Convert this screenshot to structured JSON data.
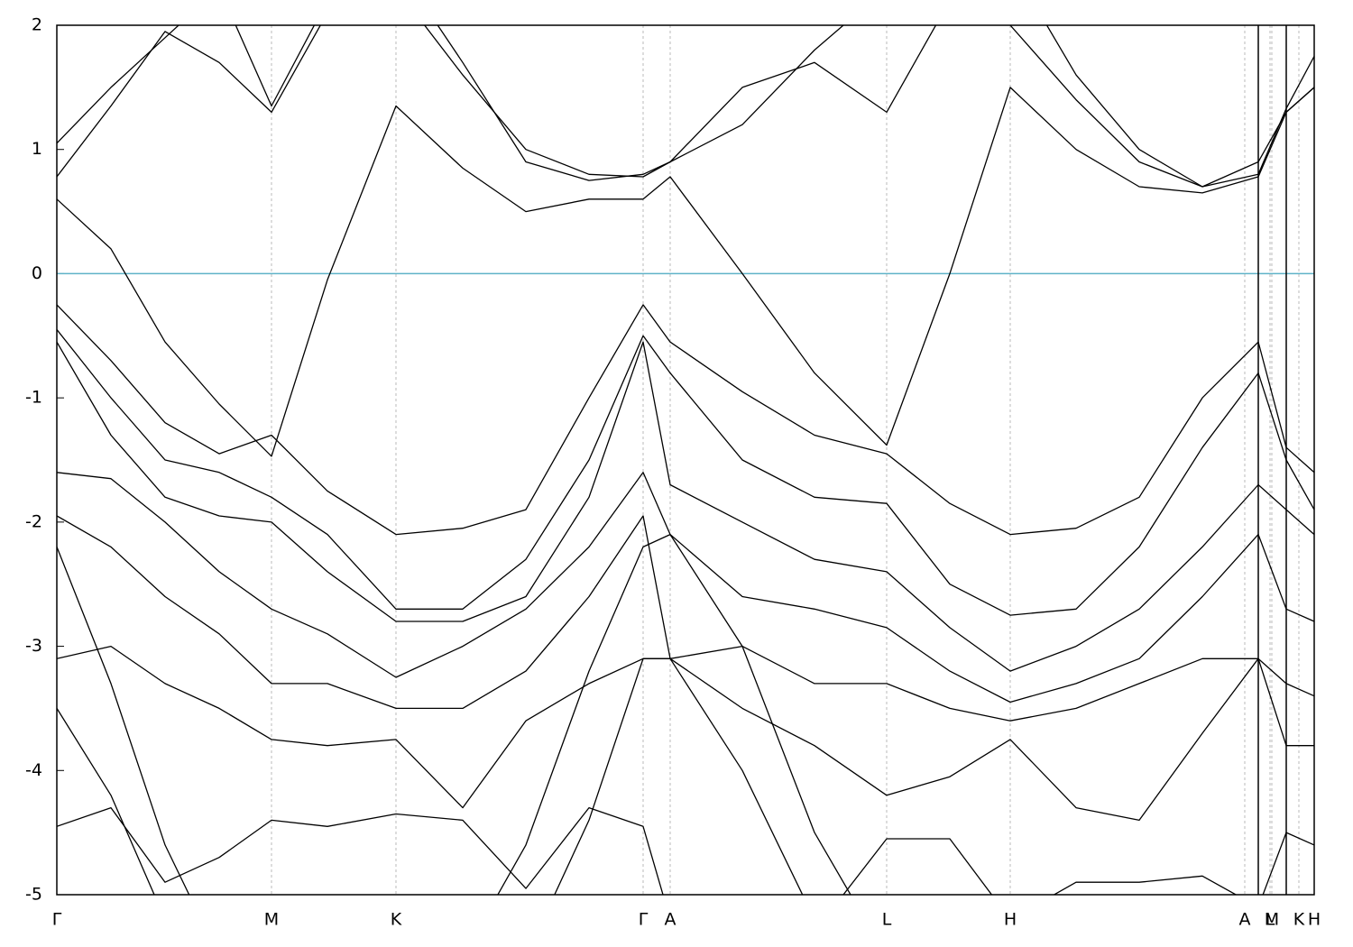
{
  "chart_data": {
    "type": "line",
    "x": [
      0,
      60,
      120,
      180,
      238,
      300,
      376,
      450,
      520,
      590,
      650,
      680,
      760,
      840,
      920,
      990,
      1057,
      1130,
      1200,
      1270,
      1332,
      1363,
      1394
    ],
    "xlim": [
      0,
      1394
    ],
    "xticks": [
      {
        "value": 0,
        "label": "Γ"
      },
      {
        "value": 238,
        "label": "M"
      },
      {
        "value": 376,
        "label": "K"
      },
      {
        "value": 650,
        "label": "Γ"
      },
      {
        "value": 680,
        "label": "A"
      },
      {
        "value": 920,
        "label": "L"
      },
      {
        "value": 1057,
        "label": "H"
      },
      {
        "value": 1317,
        "label": "A"
      },
      {
        "value": 1345,
        "label": "L"
      },
      {
        "value": 1347,
        "label": "M"
      },
      {
        "value": 1377,
        "label": "K"
      },
      {
        "value": 1394,
        "label": "H"
      }
    ],
    "panel_breaks": [
      1332,
      1363
    ],
    "ylim": [
      -5,
      2
    ],
    "yticks": [
      -5,
      -4,
      -3,
      -2,
      -1,
      0,
      1,
      2
    ],
    "grid": true,
    "reference_line": {
      "y": 0,
      "color": "#5fb3c8"
    },
    "color": "#000000",
    "series": [
      {
        "values": [
          0.6,
          0.2,
          -0.55,
          -1.05,
          -1.47,
          -0.05,
          1.35,
          0.85,
          0.5,
          0.6,
          0.6,
          0.78,
          0.0,
          -0.8,
          -1.38,
          0.0,
          1.5,
          1.0,
          0.7,
          0.65,
          0.78,
          1.3,
          1.5
        ]
      },
      {
        "values": [
          0.78,
          1.35,
          1.95,
          1.7,
          1.3,
          2.1,
          2.3,
          1.6,
          1.0,
          0.8,
          0.78,
          0.9,
          1.5,
          1.7,
          1.3,
          2.2,
          2.5,
          1.6,
          1.0,
          0.7,
          0.8,
          1.33,
          1.75
        ]
      },
      {
        "values": [
          1.05,
          1.5,
          1.9,
          2.3,
          1.35,
          2.2,
          2.5,
          1.7,
          0.9,
          0.75,
          0.8,
          0.9,
          1.2,
          1.8,
          2.3,
          2.5,
          2.0,
          1.4,
          0.9,
          0.7,
          0.9,
          1.3,
          1.5
        ]
      },
      {
        "values": [
          -0.25,
          -0.7,
          -1.2,
          -1.45,
          -1.3,
          -1.75,
          -2.1,
          -2.05,
          -1.9,
          -1.0,
          -0.25,
          -0.55,
          -0.95,
          -1.3,
          -1.45,
          -1.85,
          -2.1,
          -2.05,
          -1.8,
          -1.0,
          -0.55,
          -1.4,
          -1.6
        ]
      },
      {
        "values": [
          -0.45,
          -1.0,
          -1.5,
          -1.6,
          -1.8,
          -2.1,
          -2.7,
          -2.7,
          -2.3,
          -1.5,
          -0.5,
          -0.8,
          -1.5,
          -1.8,
          -1.85,
          -2.5,
          -2.75,
          -2.7,
          -2.2,
          -1.4,
          -0.8,
          -1.5,
          -1.9
        ]
      },
      {
        "values": [
          -0.55,
          -1.3,
          -1.8,
          -1.95,
          -2.0,
          -2.4,
          -2.8,
          -2.8,
          -2.6,
          -1.8,
          -0.55,
          -1.7,
          -2.0,
          -2.3,
          -2.4,
          -2.85,
          -3.2,
          -3.0,
          -2.7,
          -2.2,
          -1.7,
          -1.9,
          -2.1
        ]
      },
      {
        "values": [
          -1.6,
          -1.65,
          -2.0,
          -2.4,
          -2.7,
          -2.9,
          -3.25,
          -3.0,
          -2.7,
          -2.2,
          -1.6,
          -2.1,
          -2.6,
          -2.7,
          -2.85,
          -3.2,
          -3.45,
          -3.3,
          -3.1,
          -2.6,
          -2.1,
          -2.7,
          -2.8
        ]
      },
      {
        "values": [
          -1.95,
          -2.2,
          -2.6,
          -2.9,
          -3.3,
          -3.3,
          -3.5,
          -3.5,
          -3.2,
          -2.6,
          -1.95,
          -3.1,
          -3.0,
          -3.3,
          -3.3,
          -3.5,
          -3.6,
          -3.5,
          -3.3,
          -3.1,
          -3.1,
          -3.3,
          -3.4
        ]
      },
      {
        "values": [
          -3.1,
          -3.0,
          -3.3,
          -3.5,
          -3.75,
          -3.8,
          -3.75,
          -4.3,
          -3.6,
          -3.3,
          -3.1,
          -3.1,
          -3.5,
          -3.8,
          -4.2,
          -4.05,
          -3.75,
          -4.3,
          -4.4,
          -3.7,
          -3.1,
          -3.8,
          -3.8
        ]
      },
      {
        "values": [
          -4.45,
          -4.3,
          -4.9,
          -4.7,
          -4.4,
          -4.45,
          -4.35,
          -4.4,
          -4.95,
          -4.3,
          -4.45,
          -5.2,
          -5.1,
          -5.3,
          -4.55,
          -4.55,
          -5.2,
          -4.9,
          -4.9,
          -4.85,
          -5.1,
          -4.5,
          -4.6
        ]
      },
      {
        "values": [
          -2.2,
          -3.3,
          -4.6,
          -5.5,
          -5.5,
          -5.5,
          -5.5,
          -5.5,
          -4.6,
          -3.2,
          -2.2,
          -2.1,
          -3.0,
          -4.5,
          -5.5,
          -5.5,
          -5.5,
          -5.5,
          -5.5,
          -5.5,
          -5.5,
          -5.5,
          -5.5
        ]
      },
      {
        "values": [
          -3.5,
          -4.2,
          -5.2,
          -5.5,
          -5.5,
          -5.5,
          -5.5,
          -5.5,
          -5.5,
          -4.4,
          -3.1,
          -3.1,
          -4.0,
          -5.2,
          -5.5,
          -5.5,
          -5.5,
          -5.5,
          -5.5,
          -5.5,
          -5.5,
          -5.5,
          -5.5
        ]
      }
    ]
  }
}
